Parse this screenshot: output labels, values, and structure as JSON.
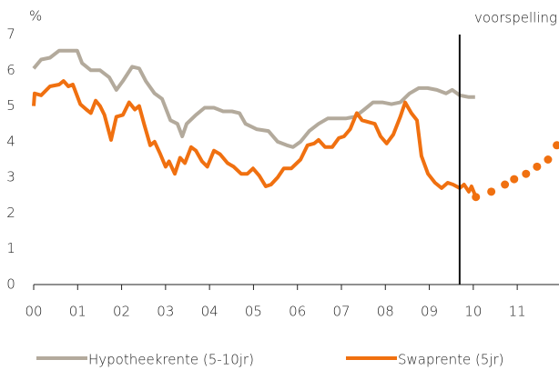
{
  "chart_data": {
    "type": "line",
    "y_unit_label": "%",
    "xlim": [
      0,
      11.95
    ],
    "xticks": [
      {
        "value": 0,
        "label": "00"
      },
      {
        "value": 1,
        "label": "01"
      },
      {
        "value": 2,
        "label": "02"
      },
      {
        "value": 3,
        "label": "03"
      },
      {
        "value": 4,
        "label": "04"
      },
      {
        "value": 5,
        "label": "05"
      },
      {
        "value": 6,
        "label": "06"
      },
      {
        "value": 7,
        "label": "07"
      },
      {
        "value": 8,
        "label": "08"
      },
      {
        "value": 9,
        "label": "09"
      },
      {
        "value": 10,
        "label": "10"
      },
      {
        "value": 11,
        "label": "11"
      }
    ],
    "ylim": [
      0,
      7
    ],
    "yticks": [
      0,
      1,
      2,
      3,
      4,
      5,
      6,
      7
    ],
    "annotation": {
      "text": "voorspelling",
      "x": 9.69
    },
    "legend": "bottom",
    "series": [
      {
        "name": "Hypotheekrente (5-10jr)",
        "color": "#b3aa9c",
        "x": [
          0,
          0.17,
          0.37,
          0.58,
          0.79,
          0.99,
          1.1,
          1.3,
          1.51,
          1.72,
          1.88,
          2.03,
          2.24,
          2.4,
          2.55,
          2.75,
          2.92,
          3.11,
          3.27,
          3.38,
          3.48,
          3.69,
          3.89,
          4.1,
          4.31,
          4.51,
          4.68,
          4.82,
          5.07,
          5.34,
          5.55,
          5.76,
          5.9,
          6.07,
          6.27,
          6.48,
          6.69,
          6.89,
          7.1,
          7.31,
          7.52,
          7.72,
          7.93,
          8.14,
          8.34,
          8.55,
          8.76,
          8.96,
          9.17,
          9.38,
          9.52,
          9.69,
          9.9,
          10.04
        ],
        "values": [
          6.05,
          6.3,
          6.35,
          6.55,
          6.55,
          6.55,
          6.2,
          6.0,
          6.0,
          5.8,
          5.45,
          5.7,
          6.1,
          6.05,
          5.7,
          5.35,
          5.2,
          4.6,
          4.5,
          4.15,
          4.5,
          4.75,
          4.95,
          4.95,
          4.85,
          4.85,
          4.8,
          4.5,
          4.35,
          4.3,
          4.0,
          3.9,
          3.85,
          4.0,
          4.3,
          4.5,
          4.65,
          4.65,
          4.65,
          4.7,
          4.9,
          5.1,
          5.1,
          5.05,
          5.1,
          5.35,
          5.5,
          5.5,
          5.45,
          5.35,
          5.45,
          5.3,
          5.25,
          5.25
        ]
      },
      {
        "name": "Swaprente (5jr)",
        "color": "#f07010",
        "x": [
          0,
          0.02,
          0.17,
          0.37,
          0.58,
          0.68,
          0.79,
          0.89,
          1.06,
          1.2,
          1.3,
          1.41,
          1.51,
          1.61,
          1.76,
          1.88,
          2.03,
          2.17,
          2.3,
          2.4,
          2.51,
          2.65,
          2.75,
          2.88,
          3.0,
          3.08,
          3.21,
          3.33,
          3.44,
          3.58,
          3.69,
          3.83,
          3.95,
          4.1,
          4.24,
          4.41,
          4.55,
          4.72,
          4.86,
          4.99,
          5.13,
          5.28,
          5.4,
          5.55,
          5.69,
          5.86,
          6.07,
          6.23,
          6.38,
          6.48,
          6.63,
          6.79,
          6.94,
          7.06,
          7.2,
          7.35,
          7.47,
          7.62,
          7.76,
          7.89,
          8.03,
          8.18,
          8.34,
          8.45,
          8.59,
          8.72,
          8.82,
          8.97,
          9.13,
          9.28,
          9.42,
          9.54,
          9.69,
          9.79,
          9.9,
          9.96,
          10.06
        ],
        "values": [
          5.0,
          5.35,
          5.3,
          5.55,
          5.6,
          5.7,
          5.55,
          5.6,
          5.05,
          4.9,
          4.8,
          5.15,
          5.0,
          4.75,
          4.05,
          4.7,
          4.75,
          5.1,
          4.9,
          5.0,
          4.5,
          3.9,
          4.0,
          3.65,
          3.3,
          3.45,
          3.1,
          3.55,
          3.4,
          3.85,
          3.75,
          3.45,
          3.3,
          3.75,
          3.65,
          3.4,
          3.3,
          3.1,
          3.1,
          3.25,
          3.05,
          2.75,
          2.8,
          3.0,
          3.25,
          3.25,
          3.5,
          3.9,
          3.95,
          4.05,
          3.85,
          3.85,
          4.1,
          4.15,
          4.35,
          4.8,
          4.6,
          4.55,
          4.5,
          4.15,
          3.95,
          4.2,
          4.7,
          5.1,
          4.8,
          4.6,
          3.6,
          3.1,
          2.85,
          2.7,
          2.85,
          2.8,
          2.7,
          2.8,
          2.6,
          2.75,
          2.45
        ]
      },
      {
        "color": "#f07010",
        "style": "dotted",
        "x": [
          10.06,
          10.41,
          10.72,
          10.93,
          11.2,
          11.45,
          11.7,
          11.9
        ],
        "values": [
          2.45,
          2.6,
          2.8,
          2.95,
          3.1,
          3.3,
          3.5,
          3.9
        ]
      }
    ]
  }
}
